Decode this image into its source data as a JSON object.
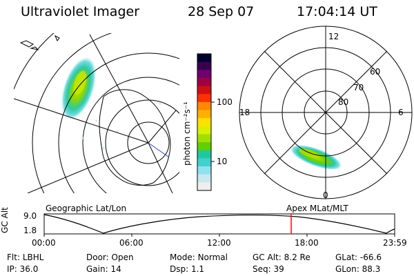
{
  "header": {
    "instrument": "Ultraviolet Imager",
    "date": "28 Sep 07",
    "time": "17:04:14 UT"
  },
  "colorbar": {
    "label": "photon cm⁻²s⁻¹",
    "ticks": [
      {
        "label": "100",
        "value": 100
      },
      {
        "label": "10",
        "value": 10
      }
    ],
    "colors": [
      "#000030",
      "#3a0050",
      "#700070",
      "#a00040",
      "#d01010",
      "#ff3000",
      "#ff8800",
      "#ffb000",
      "#ffe000",
      "#d8f000",
      "#a0e000",
      "#60d000",
      "#20c8a0",
      "#40d0d0",
      "#90e0f0",
      "#c8e8f0",
      "#eeeeee"
    ]
  },
  "geo_panel": {
    "label": "Geographic Lat/Lon"
  },
  "polar_panel": {
    "label": "Apex MLat/MLT",
    "mlt_labels": {
      "top": "12",
      "left": "18",
      "right": "6",
      "bottom": "0"
    },
    "lat_labels": [
      "60",
      "70",
      "80"
    ]
  },
  "timeline": {
    "ylabel": "GC Alt",
    "yticks": [
      "9.0",
      "1.8"
    ],
    "xticks": [
      "00:00",
      "06:00",
      "12:00",
      "18:00",
      "23:59"
    ],
    "marker_time": "17:04",
    "marker_color": "#ff0000"
  },
  "info": [
    [
      {
        "key": "Flt:",
        "val": "LBHL"
      },
      {
        "key": "Door:",
        "val": "Open"
      },
      {
        "key": "Mode:",
        "val": "Normal"
      },
      {
        "key": "GC Alt:",
        "val": "8.2 Re"
      },
      {
        "key": "GLat:",
        "val": "-66.6"
      }
    ],
    [
      {
        "key": "IP:",
        "val": "36.0"
      },
      {
        "key": "Gain:",
        "val": "14"
      },
      {
        "key": "Dsp:",
        "val": "1.1"
      },
      {
        "key": "Seq:",
        "val": "39"
      },
      {
        "key": "GLon:",
        "val": "88.3"
      }
    ]
  ]
}
